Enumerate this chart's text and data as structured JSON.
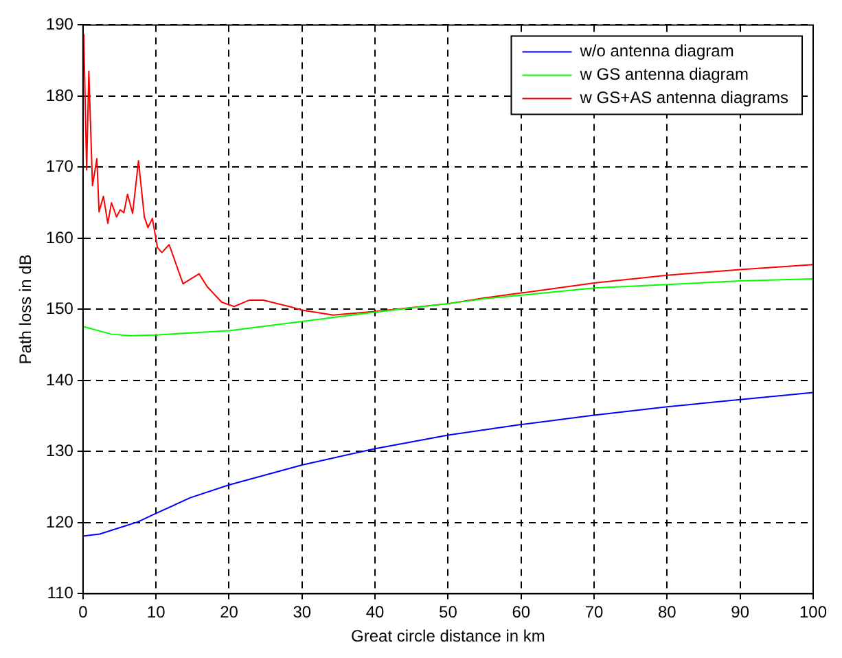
{
  "chart_data": {
    "type": "line",
    "xlabel": "Great circle distance in km",
    "ylabel": "Path loss in dB",
    "xlim": [
      0,
      100
    ],
    "xticks": [
      0,
      10,
      20,
      30,
      40,
      50,
      60,
      70,
      80,
      90,
      100
    ],
    "ylim": [
      110,
      190
    ],
    "yticks": [
      110,
      120,
      130,
      140,
      150,
      160,
      170,
      180,
      190
    ],
    "grid": true,
    "legend": "top right",
    "marker": "none",
    "line_style": "solid",
    "series": [
      {
        "name": "w/o antenna diagram",
        "color": "#0000ff",
        "x": [
          0,
          2.3,
          7.5,
          10,
          14.7,
          20,
          30,
          40,
          50,
          60,
          70,
          80,
          90,
          100
        ],
        "values": [
          118.1,
          118.4,
          120.1,
          121.3,
          123.5,
          125.3,
          128.1,
          130.4,
          132.3,
          133.8,
          135.1,
          136.3,
          137.3,
          138.3
        ]
      },
      {
        "name": "w GS antenna diagram",
        "color": "#00ff00",
        "x": [
          0,
          3.9,
          6.4,
          10,
          20,
          30,
          40,
          50,
          55,
          60,
          70,
          80,
          90,
          100
        ],
        "values": [
          147.6,
          146.5,
          146.3,
          146.4,
          147,
          148.3,
          149.6,
          150.8,
          151.5,
          152,
          153,
          153.5,
          154,
          154.3
        ]
      },
      {
        "name": "w GS+AS antenna diagrams",
        "color": "#ff0000",
        "x": [
          0.1,
          0.5,
          0.8,
          1.3,
          1.9,
          2.2,
          2.8,
          3.4,
          3.9,
          4.6,
          5.1,
          5.6,
          6.1,
          6.8,
          7.6,
          8.4,
          8.9,
          9.5,
          10.2,
          10.8,
          11.8,
          13.7,
          15.9,
          17,
          19,
          20.7,
          22.8,
          24.7,
          28.6,
          30,
          34.3,
          40,
          50,
          55,
          60,
          70,
          80,
          90,
          100
        ],
        "values": [
          188.7,
          169.6,
          183.5,
          167.4,
          171.2,
          163.7,
          165.9,
          162.1,
          165,
          163,
          164,
          163.6,
          166.2,
          163.5,
          170.9,
          163,
          161.5,
          162.8,
          158.7,
          158,
          159.1,
          153.6,
          155,
          153.2,
          151,
          150.4,
          151.3,
          151.3,
          150.3,
          149.9,
          149.2,
          149.7,
          150.8,
          151.6,
          152.3,
          153.7,
          154.8,
          155.6,
          156.3
        ]
      }
    ]
  }
}
